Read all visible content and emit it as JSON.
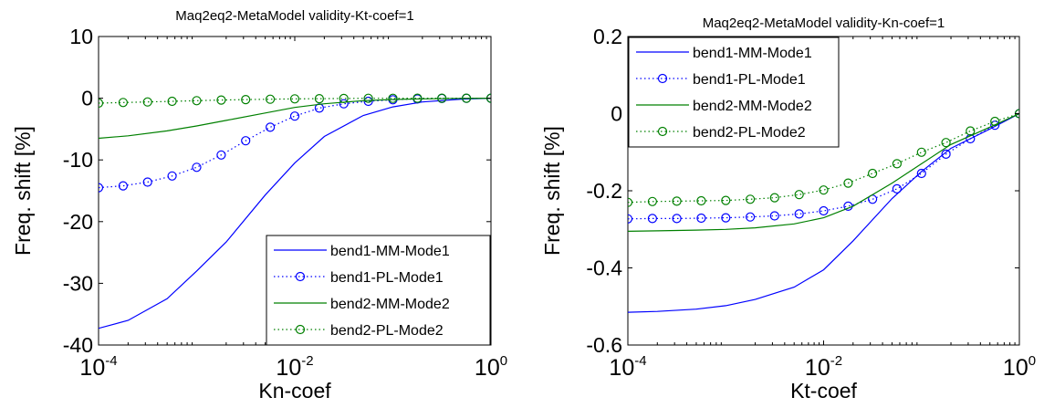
{
  "chart_data": [
    {
      "type": "line",
      "title": "Maq2eq2-MetaModel validity-Kt-coef=1",
      "xlabel": "Kn-coef",
      "ylabel": "Freq. shift [%]",
      "xscale": "log",
      "xlim": [
        0.0001,
        1
      ],
      "ylim": [
        -40,
        10
      ],
      "xticks": [
        {
          "base": "10",
          "exp": "-4"
        },
        {
          "base": "10",
          "exp": "-2"
        },
        {
          "base": "10",
          "exp": "0"
        }
      ],
      "yticks": [
        "10",
        "0",
        "-10",
        "-20",
        "-30",
        "-40"
      ],
      "legend_position": "bottom-right",
      "grid": false,
      "series": [
        {
          "name": "bend1-MM-Mode1",
          "color": "#0000ff",
          "style": "solid",
          "x": [
            0.0001,
            0.0002,
            0.0005,
            0.001,
            0.002,
            0.005,
            0.01,
            0.02,
            0.05,
            0.1,
            0.2,
            0.5,
            1
          ],
          "y": [
            -37.3,
            -36,
            -32.5,
            -28,
            -23.3,
            -15.7,
            -10.5,
            -6.2,
            -2.8,
            -1.4,
            -0.6,
            -0.15,
            0
          ]
        },
        {
          "name": "bend1-PL-Mode1",
          "color": "#0000ff",
          "style": "dotted-circle",
          "x": [
            0.0001,
            0.000178,
            0.000316,
            0.000562,
            0.001,
            0.00178,
            0.00316,
            0.00562,
            0.01,
            0.0178,
            0.0316,
            0.0562,
            0.1,
            0.178,
            0.316,
            0.562,
            1
          ],
          "y": [
            -14.5,
            -14.2,
            -13.6,
            -12.6,
            -11.2,
            -9.2,
            -6.9,
            -4.7,
            -2.9,
            -1.6,
            -0.9,
            -0.5,
            -0.25,
            -0.12,
            -0.05,
            -0.02,
            0
          ]
        },
        {
          "name": "bend2-MM-Mode2",
          "color": "#008000",
          "style": "solid",
          "x": [
            0.0001,
            0.0002,
            0.0005,
            0.001,
            0.002,
            0.005,
            0.01,
            0.02,
            0.05,
            0.1,
            0.2,
            0.5,
            1
          ],
          "y": [
            -6.5,
            -6.1,
            -5.3,
            -4.5,
            -3.6,
            -2.4,
            -1.5,
            -0.9,
            -0.4,
            -0.2,
            -0.1,
            -0.03,
            0
          ]
        },
        {
          "name": "bend2-PL-Mode2",
          "color": "#008000",
          "style": "dotted-circle",
          "x": [
            0.0001,
            0.000178,
            0.000316,
            0.000562,
            0.001,
            0.00178,
            0.00316,
            0.00562,
            0.01,
            0.0178,
            0.0316,
            0.0562,
            0.1,
            0.178,
            0.316,
            0.562,
            1
          ],
          "y": [
            -0.8,
            -0.7,
            -0.6,
            -0.5,
            -0.4,
            -0.3,
            -0.22,
            -0.16,
            -0.1,
            -0.07,
            -0.04,
            -0.02,
            -0.01,
            0,
            0,
            0,
            0
          ]
        }
      ]
    },
    {
      "type": "line",
      "title": "Maq2eq2-MetaModel validity-Kn-coef=1",
      "xlabel": "Kt-coef",
      "ylabel": "Freq. shift [%]",
      "xscale": "log",
      "xlim": [
        0.0001,
        1
      ],
      "ylim": [
        -0.6,
        0.2
      ],
      "xticks": [
        {
          "base": "10",
          "exp": "-4"
        },
        {
          "base": "10",
          "exp": "-2"
        },
        {
          "base": "10",
          "exp": "0"
        }
      ],
      "yticks": [
        "0.2",
        "0",
        "-0.2",
        "-0.4",
        "-0.6"
      ],
      "legend_position": "top-left",
      "grid": false,
      "series": [
        {
          "name": "bend1-MM-Mode1",
          "color": "#0000ff",
          "style": "solid",
          "x": [
            0.0001,
            0.0002,
            0.0005,
            0.001,
            0.002,
            0.005,
            0.01,
            0.02,
            0.05,
            0.1,
            0.2,
            0.5,
            1
          ],
          "y": [
            -0.515,
            -0.513,
            -0.507,
            -0.498,
            -0.482,
            -0.45,
            -0.405,
            -0.33,
            -0.22,
            -0.15,
            -0.09,
            -0.04,
            0
          ]
        },
        {
          "name": "bend1-PL-Mode1",
          "color": "#0000ff",
          "style": "dotted-circle",
          "x": [
            0.0001,
            0.000178,
            0.000316,
            0.000562,
            0.001,
            0.00178,
            0.00316,
            0.00562,
            0.01,
            0.0178,
            0.0316,
            0.0562,
            0.1,
            0.178,
            0.316,
            0.562,
            1
          ],
          "y": [
            -0.273,
            -0.272,
            -0.272,
            -0.271,
            -0.27,
            -0.268,
            -0.265,
            -0.26,
            -0.252,
            -0.24,
            -0.222,
            -0.195,
            -0.155,
            -0.105,
            -0.065,
            -0.03,
            0
          ]
        },
        {
          "name": "bend2-MM-Mode2",
          "color": "#008000",
          "style": "solid",
          "x": [
            0.0001,
            0.0002,
            0.0005,
            0.001,
            0.002,
            0.005,
            0.01,
            0.02,
            0.05,
            0.1,
            0.2,
            0.5,
            1
          ],
          "y": [
            -0.305,
            -0.304,
            -0.302,
            -0.3,
            -0.296,
            -0.286,
            -0.27,
            -0.24,
            -0.18,
            -0.13,
            -0.08,
            -0.035,
            0
          ]
        },
        {
          "name": "bend2-PL-Mode2",
          "color": "#008000",
          "style": "dotted-circle",
          "x": [
            0.0001,
            0.000178,
            0.000316,
            0.000562,
            0.001,
            0.00178,
            0.00316,
            0.00562,
            0.01,
            0.0178,
            0.0316,
            0.0562,
            0.1,
            0.178,
            0.316,
            0.562,
            1
          ],
          "y": [
            -0.23,
            -0.228,
            -0.227,
            -0.226,
            -0.225,
            -0.222,
            -0.218,
            -0.21,
            -0.198,
            -0.18,
            -0.155,
            -0.13,
            -0.1,
            -0.075,
            -0.045,
            -0.02,
            0
          ]
        }
      ]
    }
  ]
}
